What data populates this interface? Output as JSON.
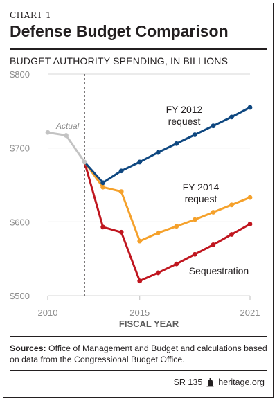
{
  "header": {
    "chart_label": "CHART 1",
    "title": "Defense Budget Comparison",
    "subtitle": "BUDGET AUTHORITY SPENDING, IN BILLIONS"
  },
  "chart_data": {
    "type": "line",
    "title": "Defense Budget Comparison",
    "ylabel": "BUDGET AUTHORITY SPENDING, IN BILLIONS",
    "xlabel": "FISCAL YEAR",
    "xlim": [
      2010,
      2021
    ],
    "ylim": [
      500,
      800
    ],
    "x_ticks": [
      "2010",
      "2015",
      "2021"
    ],
    "y_ticks": [
      "$500",
      "$600",
      "$700",
      "$800"
    ],
    "grid": "horizontal",
    "divider_year": 2012,
    "series": [
      {
        "name": "Actual",
        "color": "#c3c3c3",
        "x": [
          2010,
          2011,
          2012
        ],
        "y": [
          721,
          717,
          681
        ]
      },
      {
        "name": "FY 2012 request",
        "label_lines": [
          "FY 2012",
          "request"
        ],
        "color": "#0e4780",
        "x": [
          2012,
          2013,
          2014,
          2015,
          2016,
          2017,
          2018,
          2019,
          2020,
          2021
        ],
        "y": [
          681,
          653,
          669,
          681,
          694,
          706,
          718,
          730,
          742,
          755
        ]
      },
      {
        "name": "FY 2014 request",
        "label_lines": [
          "FY 2014",
          "request"
        ],
        "color": "#f5a12b",
        "x": [
          2012,
          2013,
          2014,
          2015,
          2016,
          2017,
          2018,
          2019,
          2020,
          2021
        ],
        "y": [
          681,
          647,
          641,
          574,
          585,
          594,
          603,
          613,
          623,
          633
        ]
      },
      {
        "name": "Sequestration",
        "label_lines": [
          "Sequestration"
        ],
        "color": "#c0161f",
        "x": [
          2012,
          2013,
          2014,
          2015,
          2016,
          2017,
          2018,
          2019,
          2020,
          2021
        ],
        "y": [
          681,
          593,
          586,
          520,
          531,
          543,
          556,
          569,
          583,
          597
        ]
      }
    ]
  },
  "footer": {
    "sources_label": "Sources:",
    "sources_text": "Office of Management and Budget and calculations based on data from the Congressional Budget Office.",
    "report_id": "SR 135",
    "site": "heritage.org"
  }
}
